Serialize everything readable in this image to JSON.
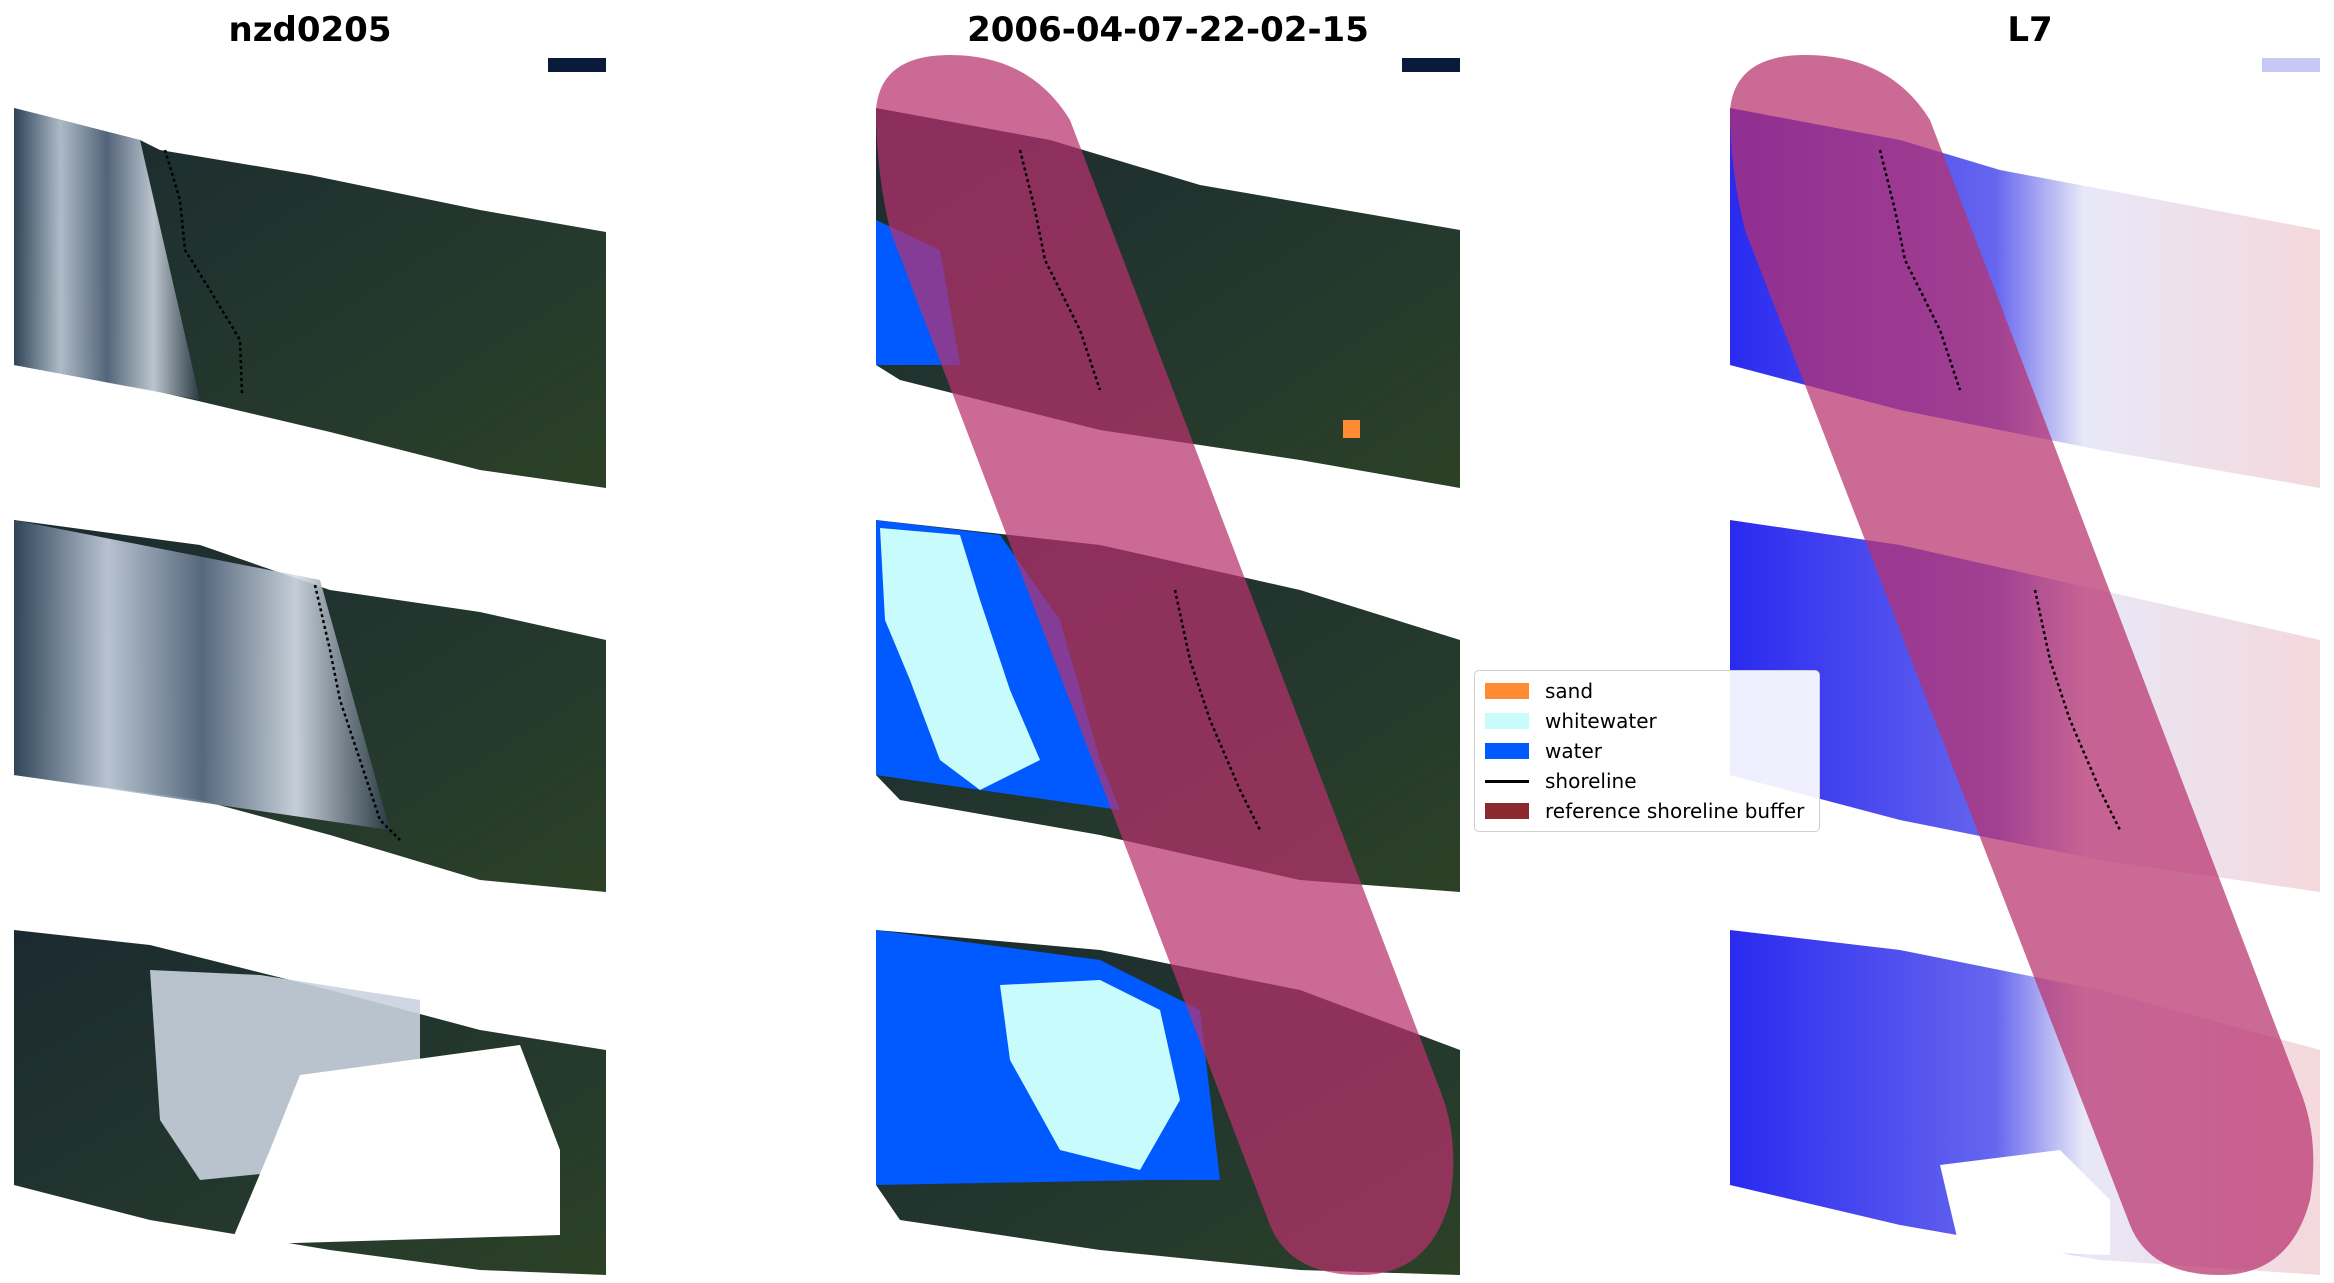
{
  "titles": {
    "left": "nzd0205",
    "center": "2006-04-07-22-02-15",
    "right": "L7"
  },
  "legend": {
    "items": [
      {
        "label": "sand",
        "kind": "patch",
        "color": "#ff8c33"
      },
      {
        "label": "whitewater",
        "kind": "patch",
        "color": "#c8fcfc"
      },
      {
        "label": "water",
        "kind": "patch",
        "color": "#005aff"
      },
      {
        "label": "shoreline",
        "kind": "line",
        "color": "#000000"
      },
      {
        "label": "reference shoreline buffer",
        "kind": "patch",
        "color": "#8b2a2e"
      }
    ]
  },
  "colors": {
    "vegetation_dark": "#1c2a2f",
    "cloud": "#dfe6ee",
    "buffer_overlay": "#b8306e"
  }
}
